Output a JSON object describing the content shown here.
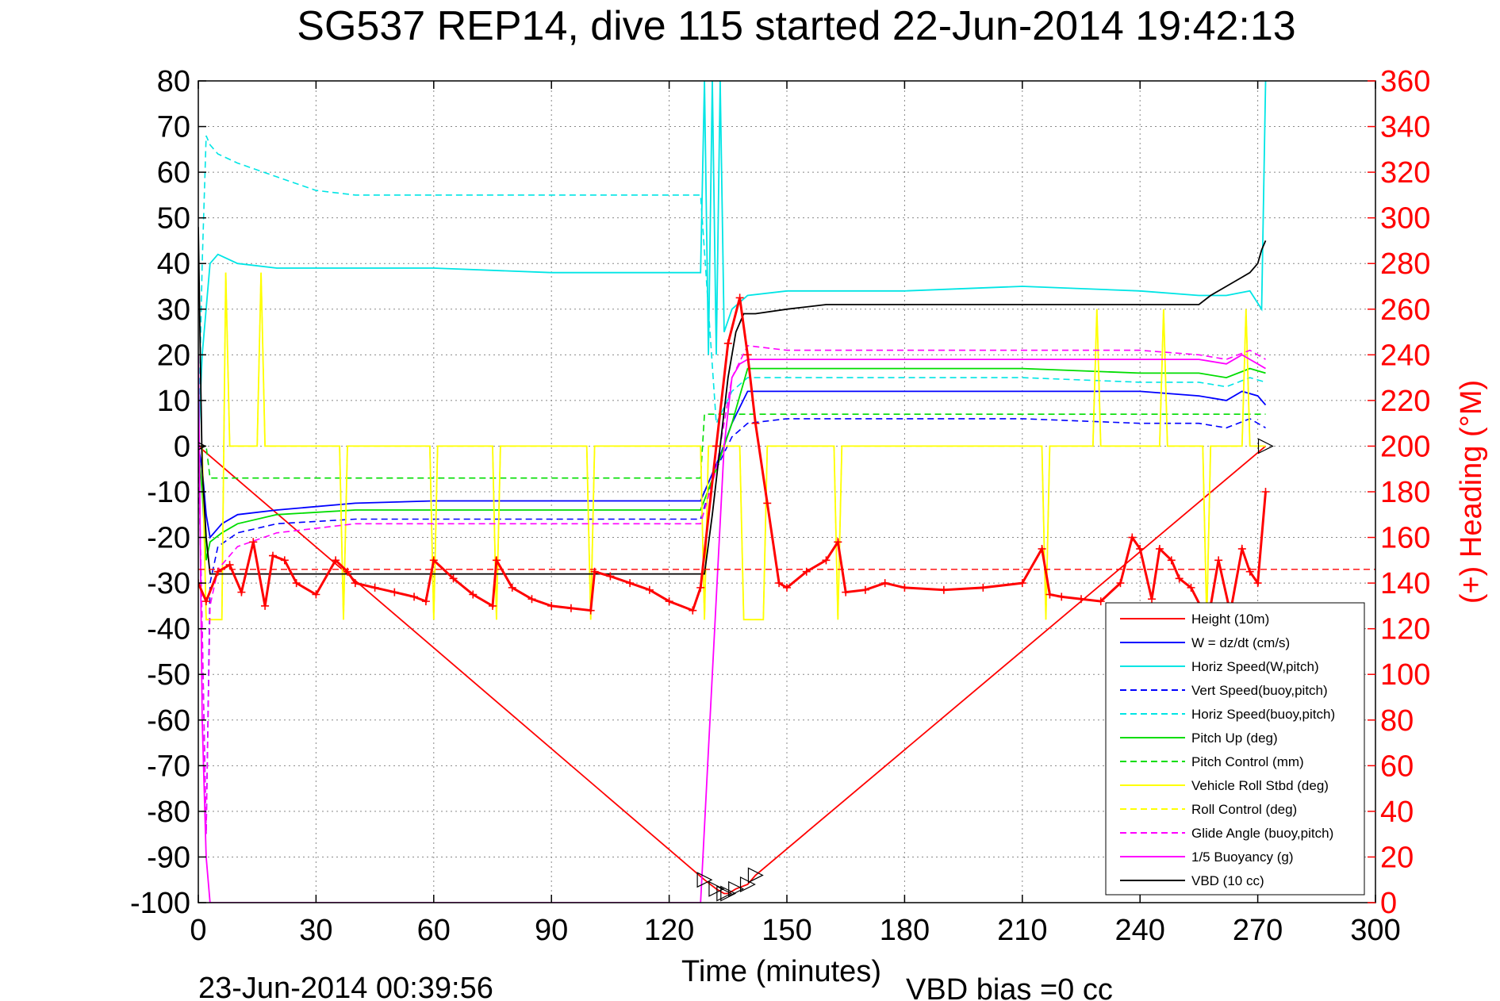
{
  "chart_data": {
    "type": "line",
    "title": "SG537 REP14, dive 115 started 22-Jun-2014 19:42:13",
    "xlabel": "Time (minutes)",
    "ylabel": "",
    "y2label": "(+) Heading (°M)",
    "xlim": [
      0,
      300
    ],
    "ylim": [
      -100,
      80
    ],
    "y2lim": [
      0,
      360
    ],
    "xticks": [
      "0",
      "30",
      "60",
      "90",
      "120",
      "150",
      "180",
      "210",
      "240",
      "270",
      "300"
    ],
    "yticks": [
      "80",
      "70",
      "60",
      "50",
      "40",
      "30",
      "20",
      "10",
      "0",
      "-10",
      "-20",
      "-30",
      "-40",
      "-50",
      "-60",
      "-70",
      "-80",
      "-90",
      "-100"
    ],
    "y2ticks": [
      "360",
      "340",
      "320",
      "300",
      "280",
      "260",
      "240",
      "220",
      "200",
      "180",
      "160",
      "140",
      "120",
      "100",
      "80",
      "60",
      "40",
      "20",
      "0"
    ],
    "grid": true,
    "legend_position": "bottom-right",
    "end_time_label": "23-Jun-2014 00:39:56",
    "vbd_bias_label": "VBD bias =0 cc",
    "colors": {
      "red": "#ff0000",
      "blue": "#0000ff",
      "cyan": "#00e5e5",
      "green": "#00dd00",
      "yellow": "#ffff00",
      "magenta": "#ff00ff",
      "black": "#000000"
    },
    "series": [
      {
        "name": "Height (10m)",
        "color": "#ff0000",
        "dash": false,
        "x": [
          0,
          129,
          132,
          134,
          135,
          137,
          140,
          142,
          272
        ],
        "y": [
          0,
          -95,
          -97,
          -98,
          -98,
          -97,
          -96,
          -94,
          0
        ]
      },
      {
        "name": "W = dz/dt (cm/s)",
        "color": "#0000ff",
        "dash": false,
        "x": [
          0,
          1,
          2,
          3,
          6,
          10,
          20,
          40,
          60,
          90,
          128,
          130,
          133,
          136,
          140,
          150,
          180,
          210,
          240,
          255,
          262,
          266,
          270,
          272
        ],
        "y": [
          0,
          -5,
          -15,
          -20,
          -17,
          -15,
          -14,
          -12.5,
          -12,
          -12,
          -12,
          -8,
          -2,
          5,
          12,
          12,
          12,
          12,
          12,
          11,
          10,
          12,
          11,
          9
        ]
      },
      {
        "name": "Horiz Speed(W,pitch)",
        "color": "#00e5e5",
        "dash": false,
        "x": [
          0,
          1,
          3,
          5,
          10,
          20,
          40,
          60,
          90,
          128,
          129,
          130,
          131,
          132,
          133,
          134,
          136,
          140,
          150,
          180,
          210,
          240,
          255,
          262,
          268,
          271,
          272
        ],
        "y": [
          0,
          20,
          40,
          42,
          40,
          39,
          39,
          39,
          38,
          38,
          80,
          20,
          80,
          20,
          80,
          25,
          30,
          33,
          34,
          34,
          35,
          34,
          33,
          33,
          34,
          30,
          80
        ]
      },
      {
        "name": "Vert Speed(buoy,pitch)",
        "color": "#0000ff",
        "dash": true,
        "x": [
          0,
          1,
          2,
          3,
          5,
          10,
          20,
          40,
          60,
          90,
          128,
          132,
          136,
          140,
          150,
          180,
          210,
          240,
          255,
          262,
          268,
          272
        ],
        "y": [
          0,
          -40,
          -85,
          -30,
          -22,
          -19,
          -17,
          -16,
          -16,
          -16,
          -16,
          -5,
          2,
          5,
          6,
          6,
          6,
          5,
          5,
          4,
          6,
          4
        ]
      },
      {
        "name": "Horiz Speed(buoy,pitch)",
        "color": "#00e5e5",
        "dash": true,
        "x": [
          0,
          1,
          2,
          3,
          5,
          10,
          20,
          30,
          40,
          60,
          90,
          128,
          132,
          136,
          140,
          150,
          180,
          210,
          240,
          255,
          262,
          268,
          272
        ],
        "y": [
          0,
          40,
          68,
          66,
          64,
          62,
          59,
          56,
          55,
          55,
          55,
          55,
          5,
          12,
          15,
          15,
          15,
          15,
          14,
          14,
          13,
          15,
          14
        ]
      },
      {
        "name": "Pitch Up (deg)",
        "color": "#00dd00",
        "dash": false,
        "x": [
          0,
          1,
          2,
          3,
          6,
          10,
          20,
          40,
          60,
          90,
          128,
          132,
          136,
          140,
          150,
          180,
          210,
          240,
          255,
          262,
          268,
          272
        ],
        "y": [
          0,
          -10,
          -25,
          -21,
          -19,
          -17,
          -15,
          -14,
          -14,
          -14,
          -14,
          -5,
          5,
          17,
          17,
          17,
          17,
          16,
          16,
          15,
          17,
          16
        ]
      },
      {
        "name": "Pitch Control (mm)",
        "color": "#00dd00",
        "dash": true,
        "x": [
          0,
          2,
          3,
          128,
          129,
          140,
          272
        ],
        "y": [
          0,
          0,
          -7,
          -7,
          7,
          7,
          7
        ]
      },
      {
        "name": "Vehicle Roll Stbd (deg)",
        "color": "#ffff00",
        "dash": false,
        "x": [
          0,
          1,
          2,
          6,
          7,
          8,
          15,
          16,
          17,
          20,
          36,
          37,
          38,
          59,
          60,
          61,
          75,
          76,
          77,
          99,
          100,
          101,
          128,
          129,
          130,
          138,
          139,
          144,
          145,
          162,
          163,
          164,
          215,
          216,
          217,
          228,
          229,
          230,
          245,
          246,
          247,
          256,
          257,
          258,
          266,
          267,
          268,
          272
        ],
        "y": [
          0,
          0,
          -38,
          -38,
          38,
          0,
          0,
          38,
          0,
          0,
          0,
          -38,
          0,
          0,
          -38,
          0,
          0,
          -38,
          0,
          0,
          -38,
          0,
          0,
          -38,
          0,
          0,
          -38,
          -38,
          0,
          0,
          -38,
          0,
          0,
          -38,
          0,
          0,
          30,
          0,
          0,
          30,
          0,
          0,
          -38,
          0,
          0,
          30,
          0,
          0
        ]
      },
      {
        "name": "Roll Control (deg)",
        "color": "#ffff00",
        "dash": true,
        "x": [
          0,
          1,
          2,
          6,
          7,
          8,
          15,
          16,
          17,
          20,
          36,
          37,
          38,
          59,
          60,
          61,
          75,
          76,
          77,
          99,
          100,
          101,
          128,
          129,
          130,
          138,
          139,
          144,
          145,
          162,
          163,
          164,
          215,
          216,
          217,
          228,
          229,
          230,
          245,
          246,
          247,
          256,
          257,
          258,
          266,
          267,
          268,
          272
        ],
        "y": [
          0,
          0,
          -38,
          -38,
          38,
          0,
          0,
          38,
          0,
          0,
          0,
          -38,
          0,
          0,
          -38,
          0,
          0,
          -38,
          0,
          0,
          -38,
          0,
          0,
          -38,
          0,
          0,
          -38,
          -38,
          0,
          0,
          -38,
          0,
          0,
          -38,
          0,
          0,
          30,
          0,
          0,
          30,
          0,
          0,
          -38,
          0,
          0,
          30,
          0,
          0
        ]
      },
      {
        "name": "Glide Angle (buoy,pitch)",
        "color": "#ff00ff",
        "dash": true,
        "x": [
          0,
          1,
          2,
          3,
          5,
          10,
          20,
          40,
          60,
          90,
          128,
          132,
          136,
          140,
          150,
          180,
          210,
          240,
          255,
          262,
          268,
          272
        ],
        "y": [
          0,
          -40,
          -85,
          -35,
          -27,
          -22,
          -19,
          -17,
          -17,
          -17,
          -17,
          -5,
          15,
          22,
          21,
          21,
          21,
          21,
          20,
          19,
          21,
          19
        ]
      },
      {
        "name": "1/5 Buoyancy (g)",
        "color": "#ff00ff",
        "dash": false,
        "x": [
          0,
          1,
          2,
          3,
          128,
          131,
          134,
          136,
          138,
          140,
          150,
          180,
          210,
          240,
          255,
          262,
          266,
          268,
          270,
          272
        ],
        "y": [
          20,
          -60,
          -90,
          -100,
          -100,
          -50,
          0,
          15,
          18,
          19,
          19,
          19,
          19,
          19,
          19,
          18,
          20,
          19,
          18,
          17
        ]
      },
      {
        "name": "VBD (10 cc)",
        "color": "#000000",
        "dash": false,
        "x": [
          0,
          0.5,
          1,
          2,
          3,
          5,
          128,
          129,
          131,
          133,
          135,
          137,
          139,
          142,
          150,
          160,
          200,
          240,
          255,
          258,
          262,
          266,
          268,
          270,
          271,
          272
        ],
        "y": [
          48,
          20,
          -5,
          -20,
          -28,
          -28,
          -28,
          -28,
          -15,
          0,
          15,
          25,
          29,
          29,
          30,
          31,
          31,
          31,
          31,
          33,
          35,
          37,
          38,
          40,
          43,
          45
        ]
      }
    ],
    "heading_series": {
      "name": "Heading",
      "axis": "right",
      "color": "#ff0000",
      "marker": "+",
      "x": [
        0,
        2,
        5,
        8,
        11,
        14,
        17,
        19,
        22,
        25,
        30,
        35,
        38,
        40,
        45,
        50,
        55,
        58,
        60,
        65,
        70,
        75,
        76,
        80,
        85,
        90,
        95,
        100,
        101,
        105,
        110,
        115,
        120,
        126,
        128,
        132,
        135,
        138,
        140,
        142,
        145,
        148,
        150,
        155,
        160,
        163,
        165,
        170,
        175,
        180,
        190,
        200,
        210,
        215,
        217,
        220,
        225,
        230,
        235,
        238,
        240,
        243,
        245,
        248,
        250,
        253,
        256,
        258,
        260,
        263,
        266,
        268,
        270,
        272
      ],
      "y": [
        140,
        132,
        145,
        148,
        136,
        158,
        130,
        152,
        150,
        140,
        135,
        150,
        145,
        140,
        138,
        136,
        134,
        132,
        150,
        142,
        135,
        130,
        150,
        138,
        133,
        130,
        129,
        128,
        145,
        143,
        140,
        137,
        132,
        128,
        138,
        200,
        245,
        265,
        240,
        210,
        175,
        140,
        138,
        145,
        150,
        158,
        136,
        137,
        140,
        138,
        137,
        138,
        140,
        155,
        135,
        134,
        133,
        132,
        140,
        160,
        155,
        133,
        155,
        150,
        142,
        138,
        128,
        130,
        150,
        127,
        155,
        145,
        140,
        180
      ],
      "reference": 146
    }
  }
}
